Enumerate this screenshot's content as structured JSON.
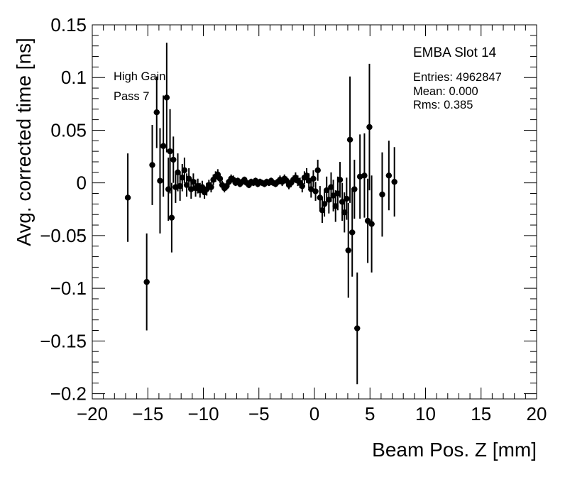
{
  "chart_data": {
    "type": "scatter",
    "xlabel": "Beam Pos. Z [mm]",
    "ylabel": "Avg. corrected time [ns]",
    "xlim": [
      -20,
      20
    ],
    "ylim": [
      -0.205,
      0.15
    ],
    "x_ticks": [
      "−20",
      "−15",
      "−10",
      "−5",
      "0",
      "5",
      "10",
      "15",
      "20"
    ],
    "x_tick_values": [
      -20,
      -15,
      -10,
      -5,
      0,
      5,
      10,
      15,
      20
    ],
    "y_ticks": [
      "0.15",
      "0.1",
      "0.05",
      "0",
      "−0.05",
      "−0.1",
      "−0.15",
      "−0.2"
    ],
    "y_tick_values": [
      0.15,
      0.1,
      0.05,
      0,
      -0.05,
      -0.1,
      -0.15,
      -0.2
    ],
    "grid": false,
    "legend": "none",
    "annotations": [
      "High Gain",
      "Pass 7"
    ],
    "stats_box": {
      "title": "EMBA Slot 14",
      "entries": "Entries: 4962847",
      "mean": "Mean: 0.000",
      "rms": "Rms: 0.385"
    },
    "series": [
      {
        "points": [
          {
            "x": -16.8,
            "y": -0.014,
            "err": 0.042
          },
          {
            "x": -15.1,
            "y": -0.094,
            "err": 0.046
          },
          {
            "x": -14.6,
            "y": 0.017,
            "err": 0.038
          },
          {
            "x": -14.2,
            "y": 0.067,
            "err": 0.034
          },
          {
            "x": -13.9,
            "y": 0.002,
            "err": 0.05
          },
          {
            "x": -13.6,
            "y": 0.035,
            "err": 0.048
          },
          {
            "x": -13.3,
            "y": 0.081,
            "err": 0.052
          },
          {
            "x": -13.15,
            "y": -0.006,
            "err": 0.03
          },
          {
            "x": -13.0,
            "y": 0.03,
            "err": 0.04
          },
          {
            "x": -12.85,
            "y": -0.033,
            "err": 0.033
          },
          {
            "x": -12.7,
            "y": 0.022,
            "err": 0.022
          },
          {
            "x": -12.5,
            "y": -0.004,
            "err": 0.015
          },
          {
            "x": -12.3,
            "y": 0.01,
            "err": 0.018
          },
          {
            "x": -12.1,
            "y": -0.003,
            "err": 0.014
          },
          {
            "x": -11.9,
            "y": 0.005,
            "err": 0.013
          },
          {
            "x": -11.7,
            "y": 0.012,
            "err": 0.012
          },
          {
            "x": -11.5,
            "y": -0.002,
            "err": 0.011
          },
          {
            "x": -11.3,
            "y": 0.004,
            "err": 0.01
          },
          {
            "x": -11.1,
            "y": -0.006,
            "err": 0.009
          },
          {
            "x": -10.9,
            "y": 0.001,
            "err": 0.008
          },
          {
            "x": -10.7,
            "y": -0.005,
            "err": 0.008
          },
          {
            "x": -10.5,
            "y": -0.003,
            "err": 0.007
          },
          {
            "x": -10.3,
            "y": -0.007,
            "err": 0.007
          },
          {
            "x": -10.1,
            "y": -0.004,
            "err": 0.006
          },
          {
            "x": -9.9,
            "y": -0.009,
            "err": 0.006
          },
          {
            "x": -9.7,
            "y": -0.006,
            "err": 0.006
          },
          {
            "x": -9.5,
            "y": -0.002,
            "err": 0.005
          },
          {
            "x": -9.3,
            "y": -0.004,
            "err": 0.005
          },
          {
            "x": -9.1,
            "y": 0.003,
            "err": 0.005
          },
          {
            "x": -8.9,
            "y": 0.006,
            "err": 0.005
          },
          {
            "x": -8.7,
            "y": 0.008,
            "err": 0.005
          },
          {
            "x": -8.5,
            "y": 0.004,
            "err": 0.004
          },
          {
            "x": -8.3,
            "y": -0.002,
            "err": 0.004
          },
          {
            "x": -8.1,
            "y": -0.005,
            "err": 0.004
          },
          {
            "x": -7.9,
            "y": -0.003,
            "err": 0.004
          },
          {
            "x": -7.7,
            "y": 0.001,
            "err": 0.004
          },
          {
            "x": -7.5,
            "y": 0.004,
            "err": 0.004
          },
          {
            "x": -7.3,
            "y": 0.003,
            "err": 0.004
          },
          {
            "x": -7.1,
            "y": 0.0,
            "err": 0.003
          },
          {
            "x": -6.9,
            "y": 0.002,
            "err": 0.003
          },
          {
            "x": -6.7,
            "y": -0.001,
            "err": 0.003
          },
          {
            "x": -6.5,
            "y": 0.001,
            "err": 0.003
          },
          {
            "x": -6.3,
            "y": 0.003,
            "err": 0.003
          },
          {
            "x": -6.1,
            "y": 0.0,
            "err": 0.003
          },
          {
            "x": -5.9,
            "y": -0.002,
            "err": 0.003
          },
          {
            "x": -5.7,
            "y": 0.001,
            "err": 0.003
          },
          {
            "x": -5.5,
            "y": 0.0,
            "err": 0.003
          },
          {
            "x": -5.3,
            "y": 0.002,
            "err": 0.003
          },
          {
            "x": -5.1,
            "y": -0.001,
            "err": 0.003
          },
          {
            "x": -4.9,
            "y": 0.001,
            "err": 0.003
          },
          {
            "x": -4.7,
            "y": 0.0,
            "err": 0.003
          },
          {
            "x": -4.5,
            "y": -0.001,
            "err": 0.003
          },
          {
            "x": -4.3,
            "y": 0.001,
            "err": 0.003
          },
          {
            "x": -4.1,
            "y": 0.0,
            "err": 0.003
          },
          {
            "x": -3.9,
            "y": 0.002,
            "err": 0.003
          },
          {
            "x": -3.7,
            "y": 0.0,
            "err": 0.003
          },
          {
            "x": -3.5,
            "y": -0.001,
            "err": 0.003
          },
          {
            "x": -3.3,
            "y": 0.001,
            "err": 0.003
          },
          {
            "x": -3.1,
            "y": 0.003,
            "err": 0.004
          },
          {
            "x": -2.9,
            "y": 0.001,
            "err": 0.004
          },
          {
            "x": -2.7,
            "y": 0.004,
            "err": 0.004
          },
          {
            "x": -2.5,
            "y": 0.002,
            "err": 0.004
          },
          {
            "x": -2.3,
            "y": -0.002,
            "err": 0.004
          },
          {
            "x": -2.1,
            "y": 0.0,
            "err": 0.004
          },
          {
            "x": -1.9,
            "y": 0.003,
            "err": 0.004
          },
          {
            "x": -1.7,
            "y": 0.005,
            "err": 0.005
          },
          {
            "x": -1.5,
            "y": 0.002,
            "err": 0.005
          },
          {
            "x": -1.3,
            "y": 0.0,
            "err": 0.005
          },
          {
            "x": -1.1,
            "y": -0.003,
            "err": 0.006
          },
          {
            "x": -0.9,
            "y": 0.005,
            "err": 0.006
          },
          {
            "x": -0.7,
            "y": 0.007,
            "err": 0.007
          },
          {
            "x": -0.5,
            "y": 0.002,
            "err": 0.007
          },
          {
            "x": -0.3,
            "y": -0.006,
            "err": 0.008
          },
          {
            "x": -0.1,
            "y": 0.004,
            "err": 0.008
          },
          {
            "x": 0.1,
            "y": -0.008,
            "err": 0.009
          },
          {
            "x": 0.3,
            "y": 0.012,
            "err": 0.01
          },
          {
            "x": 0.5,
            "y": -0.014,
            "err": 0.011
          },
          {
            "x": 0.7,
            "y": -0.026,
            "err": 0.012
          },
          {
            "x": 0.9,
            "y": -0.02,
            "err": 0.012
          },
          {
            "x": 1.1,
            "y": -0.007,
            "err": 0.013
          },
          {
            "x": 1.3,
            "y": -0.016,
            "err": 0.013
          },
          {
            "x": 1.5,
            "y": -0.004,
            "err": 0.014
          },
          {
            "x": 1.7,
            "y": -0.012,
            "err": 0.015
          },
          {
            "x": 1.9,
            "y": -0.022,
            "err": 0.015
          },
          {
            "x": 2.1,
            "y": -0.01,
            "err": 0.016
          },
          {
            "x": 2.3,
            "y": 0.003,
            "err": 0.017
          },
          {
            "x": 2.5,
            "y": -0.018,
            "err": 0.018
          },
          {
            "x": 2.7,
            "y": -0.028,
            "err": 0.019
          },
          {
            "x": 2.9,
            "y": -0.015,
            "err": 0.02
          },
          {
            "x": 3.05,
            "y": -0.064,
            "err": 0.045
          },
          {
            "x": 3.2,
            "y": 0.041,
            "err": 0.06
          },
          {
            "x": 3.4,
            "y": -0.047,
            "err": 0.042
          },
          {
            "x": 3.6,
            "y": -0.006,
            "err": 0.028
          },
          {
            "x": 3.85,
            "y": -0.138,
            "err": 0.053
          },
          {
            "x": 4.1,
            "y": 0.006,
            "err": 0.04
          },
          {
            "x": 4.5,
            "y": 0.007,
            "err": 0.04
          },
          {
            "x": 4.8,
            "y": -0.036,
            "err": 0.04
          },
          {
            "x": 4.95,
            "y": 0.053,
            "err": 0.06
          },
          {
            "x": 5.15,
            "y": -0.039,
            "err": 0.046
          },
          {
            "x": 6.1,
            "y": -0.011,
            "err": 0.04
          },
          {
            "x": 6.7,
            "y": 0.007,
            "err": 0.033
          },
          {
            "x": 7.2,
            "y": 0.001,
            "err": 0.033
          }
        ]
      }
    ]
  }
}
